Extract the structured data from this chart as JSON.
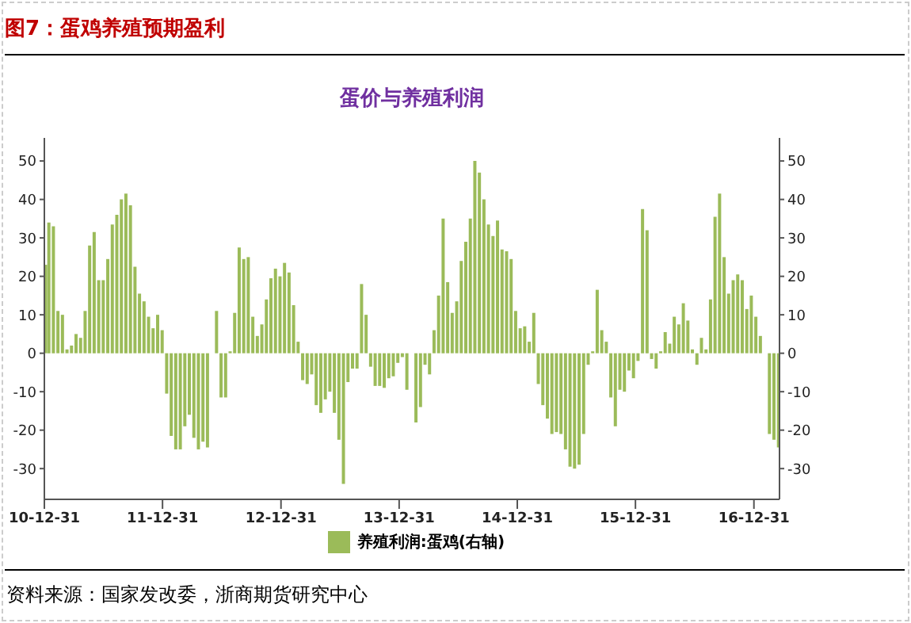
{
  "chart_data": {
    "type": "bar",
    "title": "图7：蛋鸡养殖预期盈利",
    "subtitle": "蛋价与养殖利润",
    "annotations": [
      "资料来源：国家发改委，浙商期货研究中心"
    ],
    "x": [
      "2011-01-04",
      "2011-01-14",
      "2011-01-28",
      "2011-02-11",
      "2011-02-25",
      "2011-03-11",
      "2011-03-25",
      "2011-04-08",
      "2011-04-22",
      "2011-05-06",
      "2011-05-20",
      "2011-06-03",
      "2011-06-17",
      "2011-07-01",
      "2011-07-15",
      "2011-07-29",
      "2011-08-12",
      "2011-08-26",
      "2011-09-09",
      "2011-09-23",
      "2011-10-07",
      "2011-10-21",
      "2011-11-04",
      "2011-11-18",
      "2011-12-02",
      "2011-12-16",
      "2011-12-30",
      "2012-01-13",
      "2012-01-27",
      "2012-02-10",
      "2012-02-24",
      "2012-03-09",
      "2012-03-23",
      "2012-04-06",
      "2012-04-20",
      "2012-05-04",
      "2012-05-18",
      "2012-06-01",
      "2012-06-15",
      "2012-06-29",
      "2012-07-13",
      "2012-07-27",
      "2012-08-10",
      "2012-08-24",
      "2012-09-07",
      "2012-09-21",
      "2012-10-05",
      "2012-10-19",
      "2012-11-02",
      "2012-11-16",
      "2012-11-30",
      "2012-12-14",
      "2012-12-28",
      "2013-01-11",
      "2013-01-25",
      "2013-02-08",
      "2013-02-22",
      "2013-03-08",
      "2013-03-22",
      "2013-04-05",
      "2013-04-19",
      "2013-05-03",
      "2013-05-17",
      "2013-05-31",
      "2013-06-14",
      "2013-06-28",
      "2013-07-12",
      "2013-07-26",
      "2013-08-09",
      "2013-08-23",
      "2013-09-06",
      "2013-09-20",
      "2013-10-04",
      "2013-10-18",
      "2013-11-01",
      "2013-11-15",
      "2013-11-29",
      "2013-12-13",
      "2013-12-27",
      "2014-01-10",
      "2014-01-24",
      "2014-02-07",
      "2014-02-21",
      "2014-03-07",
      "2014-03-21",
      "2014-04-04",
      "2014-04-18",
      "2014-05-02",
      "2014-05-16",
      "2014-05-30",
      "2014-06-13",
      "2014-06-27",
      "2014-07-11",
      "2014-07-25",
      "2014-08-08",
      "2014-08-22",
      "2014-09-05",
      "2014-09-19",
      "2014-10-03",
      "2014-10-17",
      "2014-10-31",
      "2014-11-14",
      "2014-11-28",
      "2014-12-12",
      "2014-12-26",
      "2015-01-09",
      "2015-01-23",
      "2015-02-06",
      "2015-02-20",
      "2015-03-06",
      "2015-03-20",
      "2015-04-03",
      "2015-04-17",
      "2015-05-01",
      "2015-05-15",
      "2015-05-29",
      "2015-06-12",
      "2015-06-26",
      "2015-07-10",
      "2015-07-24",
      "2015-08-07",
      "2015-08-21",
      "2015-09-04",
      "2015-09-18",
      "2015-10-02",
      "2015-10-16",
      "2015-10-30",
      "2015-11-13",
      "2015-11-27",
      "2015-12-11",
      "2015-12-25",
      "2016-01-08",
      "2016-01-22",
      "2016-02-05",
      "2016-02-19",
      "2016-03-04",
      "2016-03-18",
      "2016-04-01",
      "2016-04-15",
      "2016-04-29",
      "2016-05-13",
      "2016-05-27",
      "2016-06-10",
      "2016-06-24",
      "2016-07-08",
      "2016-07-22",
      "2016-08-05",
      "2016-08-19",
      "2016-09-02",
      "2016-09-16",
      "2016-09-30",
      "2016-10-14",
      "2016-10-28",
      "2016-11-11",
      "2016-11-25",
      "2016-12-09",
      "2016-12-23",
      "2017-01-06",
      "2017-01-20",
      "2017-02-03",
      "2017-02-17",
      "2017-03-03",
      "2017-03-17"
    ],
    "series": [
      {
        "name": "养殖利润:蛋鸡(右轴)",
        "color": "#9bbb59",
        "axis": "y2",
        "values": [
          23,
          34,
          33,
          11,
          10,
          1,
          2,
          5,
          4,
          11,
          28,
          31.5,
          19,
          19,
          24.5,
          33.5,
          36,
          40,
          41.5,
          38.5,
          22.5,
          15.5,
          13.5,
          9.5,
          6.5,
          10,
          6,
          -10.5,
          -21.5,
          -25,
          -25,
          -19,
          -16,
          -22,
          -25,
          -23,
          -24.5,
          null,
          11,
          -11.5,
          -11.5,
          0.5,
          10.5,
          27.5,
          24.5,
          25,
          9.5,
          4.5,
          7.5,
          14,
          19.5,
          22,
          20,
          23.5,
          21,
          12.5,
          3,
          -7,
          -8,
          -5.5,
          -13.5,
          -15.5,
          -12,
          -10,
          -15.5,
          -22.5,
          -34,
          -7.5,
          -4,
          -4,
          18,
          10,
          -3.5,
          -8.5,
          -8.5,
          -9,
          -6.5,
          -6,
          -2.5,
          -1,
          -9.5,
          null,
          -18,
          -14,
          -3,
          -5.5,
          6,
          15,
          35,
          18.5,
          10.5,
          13.5,
          24,
          29,
          35,
          50,
          47,
          40,
          33.5,
          30.5,
          34.5,
          27,
          26.5,
          24.5,
          11,
          6.5,
          7,
          3,
          10.5,
          -8,
          -13.5,
          -17,
          -21,
          -20.5,
          -21,
          -25,
          -29.5,
          -30,
          -29,
          -21,
          -3,
          0.5,
          16.5,
          6,
          3,
          -11.5,
          -19,
          -9.5,
          -10,
          -4.5,
          -6.5,
          -2,
          37.5,
          32,
          -1.5,
          -4,
          0.5,
          5.5,
          2.5,
          9.5,
          7.5,
          13,
          8.5,
          1,
          -3,
          4,
          1,
          14,
          35.5,
          41.5,
          25,
          15.5,
          19,
          20.5,
          19,
          11.5,
          15,
          9.5,
          4.5,
          null,
          -21,
          -22.5,
          -24.5
        ]
      }
    ],
    "xlim": [
      "2010-12-31",
      "2017-03-20"
    ],
    "xticks": [
      {
        "value": "2010-12-31",
        "label": "10-12-31"
      },
      {
        "value": "2011-12-31",
        "label": "11-12-31"
      },
      {
        "value": "2012-12-31",
        "label": "12-12-31"
      },
      {
        "value": "2013-12-31",
        "label": "13-12-31"
      },
      {
        "value": "2014-12-31",
        "label": "14-12-31"
      },
      {
        "value": "2015-12-31",
        "label": "15-12-31"
      },
      {
        "value": "2016-12-31",
        "label": "16-12-31"
      }
    ],
    "ylim": [
      -38,
      56
    ],
    "yticks": [
      -30,
      -20,
      -10,
      0,
      10,
      20,
      30,
      40,
      50
    ],
    "y2lim": [
      -38,
      56
    ],
    "y2ticks": [
      -30,
      -20,
      -10,
      0,
      10,
      20,
      30,
      40,
      50
    ],
    "grid": false,
    "legend": "bottom"
  }
}
